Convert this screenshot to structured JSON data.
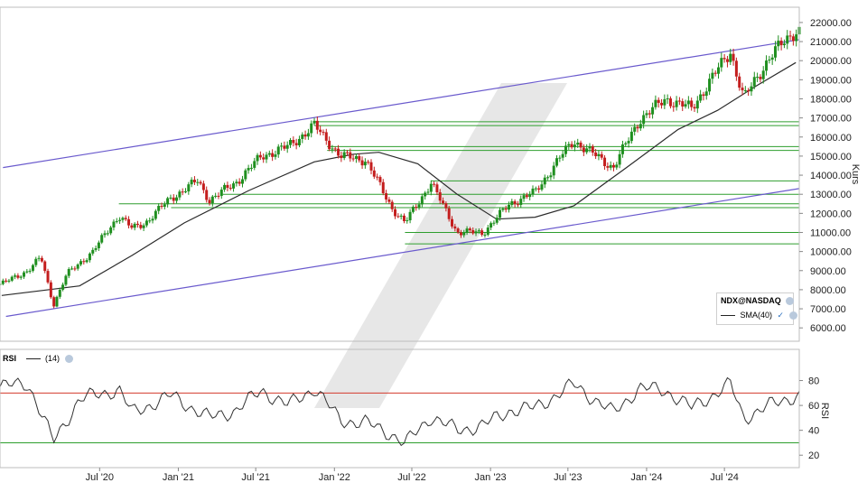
{
  "chart_data": [
    {
      "type": "candlestick",
      "instrument": "NDX@NASDAQ",
      "ylabel": "Kurs",
      "ylim": [
        5300,
        22800
      ],
      "yticks": [
        "6000.00",
        "7000.00",
        "8000.00",
        "9000.00",
        "10000.00",
        "11000.00",
        "12000.00",
        "13000.00",
        "14000.00",
        "15000.00",
        "16000.00",
        "17000.00",
        "18000.00",
        "19000.00",
        "20000.00",
        "21000.00",
        "22000.00"
      ],
      "x_labels": [
        "Jul '20",
        "Jan '21",
        "Jul '21",
        "Jan '22",
        "Jul '22",
        "Jan '23",
        "Jul '23",
        "Jan '24",
        "Jul '24"
      ],
      "x_range": [
        "2019-11-11",
        "2024-12-23"
      ],
      "close_weekly_approx": [
        {
          "date": "2019-11",
          "value": 8300
        },
        {
          "date": "2020-01",
          "value": 9000
        },
        {
          "date": "2020-02",
          "value": 9700
        },
        {
          "date": "2020-03",
          "value": 7200
        },
        {
          "date": "2020-04",
          "value": 8800
        },
        {
          "date": "2020-06",
          "value": 10000
        },
        {
          "date": "2020-08",
          "value": 11900
        },
        {
          "date": "2020-09",
          "value": 11200
        },
        {
          "date": "2020-10",
          "value": 11500
        },
        {
          "date": "2020-12",
          "value": 12800
        },
        {
          "date": "2021-02",
          "value": 13700
        },
        {
          "date": "2021-03",
          "value": 12700
        },
        {
          "date": "2021-05",
          "value": 13600
        },
        {
          "date": "2021-07",
          "value": 15000
        },
        {
          "date": "2021-09",
          "value": 15500
        },
        {
          "date": "2021-11",
          "value": 16600
        },
        {
          "date": "2022-01",
          "value": 15000
        },
        {
          "date": "2022-03",
          "value": 14800
        },
        {
          "date": "2022-05",
          "value": 12300
        },
        {
          "date": "2022-06",
          "value": 11500
        },
        {
          "date": "2022-08",
          "value": 13600
        },
        {
          "date": "2022-10",
          "value": 11000
        },
        {
          "date": "2022-12",
          "value": 11000
        },
        {
          "date": "2023-02",
          "value": 12500
        },
        {
          "date": "2023-04",
          "value": 13100
        },
        {
          "date": "2023-06",
          "value": 15000
        },
        {
          "date": "2023-07",
          "value": 15800
        },
        {
          "date": "2023-10",
          "value": 14400
        },
        {
          "date": "2023-12",
          "value": 16900
        },
        {
          "date": "2024-02",
          "value": 18000
        },
        {
          "date": "2024-04",
          "value": 17500
        },
        {
          "date": "2024-07",
          "value": 20500
        },
        {
          "date": "2024-08",
          "value": 18000
        },
        {
          "date": "2024-10",
          "value": 20200
        },
        {
          "date": "2024-12",
          "value": 21600
        }
      ],
      "sma": {
        "name": "SMA(40)",
        "values": [
          {
            "date": "2019-11",
            "value": 7700
          },
          {
            "date": "2020-05",
            "value": 8200
          },
          {
            "date": "2020-09",
            "value": 9800
          },
          {
            "date": "2021-01",
            "value": 11500
          },
          {
            "date": "2021-06",
            "value": 13200
          },
          {
            "date": "2021-11",
            "value": 14700
          },
          {
            "date": "2022-02",
            "value": 15100
          },
          {
            "date": "2022-04",
            "value": 15200
          },
          {
            "date": "2022-07",
            "value": 14600
          },
          {
            "date": "2022-10",
            "value": 13000
          },
          {
            "date": "2023-01",
            "value": 11700
          },
          {
            "date": "2023-04",
            "value": 11800
          },
          {
            "date": "2023-07",
            "value": 12400
          },
          {
            "date": "2023-11",
            "value": 14400
          },
          {
            "date": "2024-03",
            "value": 16400
          },
          {
            "date": "2024-06",
            "value": 17400
          },
          {
            "date": "2024-09",
            "value": 18700
          },
          {
            "date": "2024-12",
            "value": 19900
          }
        ]
      },
      "trend_channel": [
        [
          {
            "date": "2019-11-18",
            "value": 14400
          },
          {
            "date": "2024-12-23",
            "value": 21100
          }
        ],
        [
          {
            "date": "2019-11-25",
            "value": 6600
          },
          {
            "date": "2024-12-23",
            "value": 13300
          }
        ]
      ],
      "horizontal_levels": [
        {
          "value": 16800,
          "from": "2021-11"
        },
        {
          "value": 16600,
          "from": "2021-11"
        },
        {
          "value": 15500,
          "from": "2021-12"
        },
        {
          "value": 15300,
          "from": "2021-12"
        },
        {
          "value": 13700,
          "from": "2022-08"
        },
        {
          "value": 13000,
          "from": "2021-04"
        },
        {
          "value": 12500,
          "from": "2020-08"
        },
        {
          "value": 12300,
          "from": "2020-12"
        },
        {
          "value": 11000,
          "from": "2022-06"
        },
        {
          "value": 10400,
          "from": "2022-06"
        }
      ]
    },
    {
      "type": "line",
      "name": "RSI",
      "period_label": "(14)",
      "ylabel": "RSI",
      "ylim": [
        10,
        92
      ],
      "yticks": [
        "20",
        "40",
        "60",
        "80"
      ],
      "reference_lines": [
        70,
        30
      ],
      "values": [
        {
          "date": "2019-11",
          "value": 75
        },
        {
          "date": "2020-01",
          "value": 78
        },
        {
          "date": "2020-03",
          "value": 31
        },
        {
          "date": "2020-05",
          "value": 65
        },
        {
          "date": "2020-08",
          "value": 73
        },
        {
          "date": "2020-09",
          "value": 54
        },
        {
          "date": "2020-12",
          "value": 68
        },
        {
          "date": "2021-03",
          "value": 50
        },
        {
          "date": "2021-05",
          "value": 56
        },
        {
          "date": "2021-07",
          "value": 72
        },
        {
          "date": "2021-09",
          "value": 60
        },
        {
          "date": "2021-11",
          "value": 74
        },
        {
          "date": "2022-01",
          "value": 48
        },
        {
          "date": "2022-03",
          "value": 46
        },
        {
          "date": "2022-05",
          "value": 37
        },
        {
          "date": "2022-06",
          "value": 29
        },
        {
          "date": "2022-08",
          "value": 51
        },
        {
          "date": "2022-10",
          "value": 40
        },
        {
          "date": "2022-12",
          "value": 44
        },
        {
          "date": "2023-02",
          "value": 56
        },
        {
          "date": "2023-04",
          "value": 58
        },
        {
          "date": "2023-07",
          "value": 77
        },
        {
          "date": "2023-10",
          "value": 54
        },
        {
          "date": "2023-12",
          "value": 74
        },
        {
          "date": "2024-02",
          "value": 72
        },
        {
          "date": "2024-04",
          "value": 58
        },
        {
          "date": "2024-07",
          "value": 77
        },
        {
          "date": "2024-08",
          "value": 50
        },
        {
          "date": "2024-10",
          "value": 60
        },
        {
          "date": "2024-12",
          "value": 68
        }
      ]
    }
  ],
  "legend": {
    "symbol": "NDX@NASDAQ",
    "sma_label": "SMA(40)",
    "rsi_label": "RSI",
    "rsi_period": "(14)"
  },
  "colors": {
    "up": "#1f8f1f",
    "down": "#c41e1e",
    "sma": "#2b2b2b",
    "channel": "#6a5acd",
    "level": "#2e9e2e",
    "rsi_upper": "#d33a2c",
    "rsi_lower": "#2e9e2e",
    "watermark": "#e3e3e3"
  }
}
